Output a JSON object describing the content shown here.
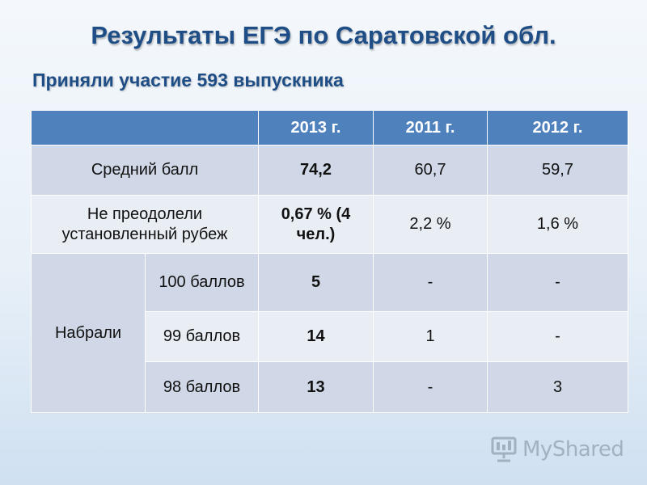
{
  "title": "Результаты ЕГЭ по Саратовской обл.",
  "subtitle": "Приняли участие 593 выпускника",
  "table": {
    "headers": [
      "",
      "2013 г.",
      "2011 г.",
      "2012 г."
    ],
    "rows": {
      "avg": {
        "label": "Средний балл",
        "values": [
          "74,2",
          "60,7",
          "59,7"
        ]
      },
      "failed": {
        "label": "Не преодолели установленный рубеж",
        "values": [
          "0,67 % (4 чел.)",
          "2,2 %",
          "1,6 %"
        ]
      },
      "scored": {
        "label": "Набрали",
        "sub": [
          {
            "label": "100 баллов",
            "values": [
              "5",
              "-",
              "-"
            ]
          },
          {
            "label": "99 баллов",
            "values": [
              "14",
              "1",
              "-"
            ]
          },
          {
            "label": "98 баллов",
            "values": [
              "13",
              "-",
              "3"
            ]
          }
        ]
      }
    }
  },
  "watermark": {
    "text": "MyShared",
    "icon": "presentation-icon"
  },
  "colors": {
    "header": "#4f81bd",
    "row_dark": "#d0d8e8",
    "row_light": "#e9edf4",
    "title": "#1f4e86"
  }
}
